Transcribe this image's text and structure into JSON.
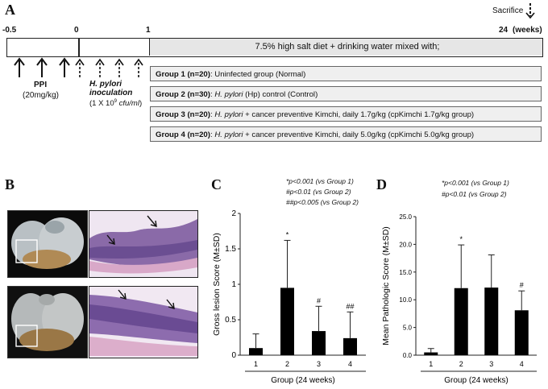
{
  "panel_a": {
    "letter": "A",
    "sacrifice_label": "Sacrifice",
    "timeline_ticks": [
      "-0.5",
      "0",
      "1",
      "24"
    ],
    "weeks_label": "(weeks)",
    "diet_label": "7.5% high salt diet + drinking water mixed with;",
    "ppi_label": "PPI",
    "ppi_dose": "(20mg/kg)",
    "hp_label_1": "H. pylori",
    "hp_label_2": "inoculation",
    "hp_dose_pre": "(1 X 10",
    "hp_dose_exp": "9",
    "hp_dose_unit": "cfu/ml",
    "hp_dose_post": ")",
    "groups": [
      {
        "title": "Group 1  (n=20)",
        "text": ": Uninfected group (Normal)"
      },
      {
        "title": "Group 2 (n=30)",
        "text_pre": ": ",
        "italic": "H. pylori",
        "text": " (Hp) control (Control)"
      },
      {
        "title": "Group 3 (n=20)",
        "text_pre": ": ",
        "italic": "H. pylori",
        "text": " + cancer preventive Kimchi, daily 1.7g/kg (cpKimchi 1.7g/kg group)"
      },
      {
        "title": "Group 4 (n=20)",
        "text_pre": ": ",
        "italic": "H. pylori",
        "text": " + cancer preventive Kimchi, daily 5.0g/kg (cpKimchi 5.0g/kg group)"
      }
    ]
  },
  "panel_b": {
    "letter": "B"
  },
  "panel_c": {
    "letter": "C",
    "notes": [
      "*p<0.001 (vs Group 1)",
      "#p<0.01 (vs Group 2)",
      "##p<0.005 (vs Group 2)"
    ]
  },
  "panel_d": {
    "letter": "D",
    "notes": [
      "*p<0.001 (vs Group 1)",
      "#p<0.01 (vs Group 2)"
    ]
  },
  "chart_data": [
    {
      "type": "bar",
      "title": "",
      "categories": [
        "1",
        "2",
        "3",
        "4"
      ],
      "values": [
        0.1,
        0.95,
        0.34,
        0.24
      ],
      "errors": [
        0.2,
        0.67,
        0.35,
        0.37
      ],
      "markers": [
        "",
        "*",
        "#",
        "##"
      ],
      "ylim": [
        0,
        2
      ],
      "yticks": [
        "0",
        "0.5",
        "1",
        "1.5",
        "2"
      ],
      "xlabel": "Group (24 weeks)",
      "ylabel": "Gross lesion Score (M±SD)"
    },
    {
      "type": "bar",
      "title": "",
      "categories": [
        "1",
        "2",
        "3",
        "4"
      ],
      "values": [
        0.5,
        12.1,
        12.2,
        8.1
      ],
      "errors": [
        0.7,
        7.8,
        5.9,
        3.5
      ],
      "markers": [
        "",
        "*",
        "",
        "#"
      ],
      "ylim": [
        0,
        25
      ],
      "yticks": [
        "0.0",
        "5.0",
        "10.0",
        "15.0",
        "20.0",
        "25.0"
      ],
      "xlabel": "Group (24 weeks)",
      "ylabel": "Mean Pathologic Score (M±SD)"
    }
  ]
}
